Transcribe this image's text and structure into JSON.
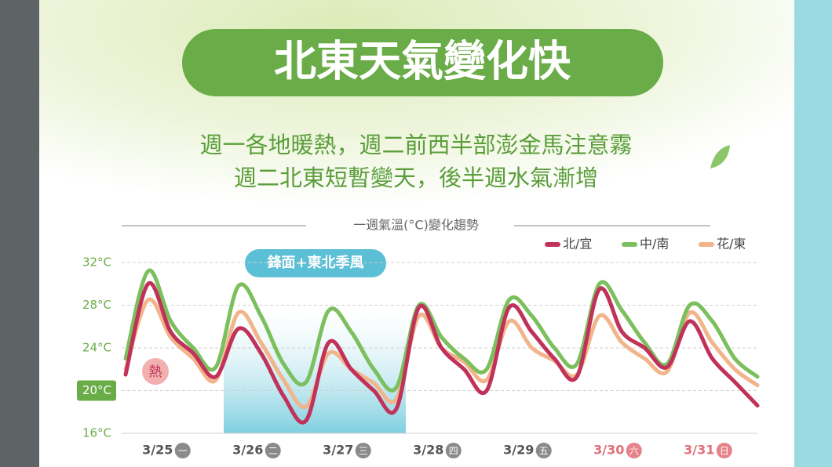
{
  "header": {
    "title": "北東天氣變化快",
    "subtitle_lines": [
      "週一各地暖熱，週二前西半部澎金馬注意霧",
      "週二北東短暫變天，後半週水氣漸增"
    ]
  },
  "chart_data": {
    "type": "line",
    "title": "一週氣溫(°C)變化趨勢",
    "categories": [
      null,
      "3/25",
      null,
      null,
      null,
      "3/26",
      null,
      null,
      null,
      "3/27",
      null,
      null,
      null,
      "3/28",
      null,
      null,
      null,
      "3/29",
      null,
      null,
      null,
      "3/30",
      null,
      null,
      null,
      "3/31",
      null,
      null,
      null
    ],
    "weekdays": [
      "一",
      "二",
      "三",
      "四",
      "五",
      "六",
      "日"
    ],
    "weekday_colors": [
      "#8a8a8a",
      "#8a8a8a",
      "#8a8a8a",
      "#8a8a8a",
      "#8a8a8a",
      "#e5828a",
      "#e5828a"
    ],
    "label_colors": [
      "#555555",
      "#555555",
      "#555555",
      "#555555",
      "#555555",
      "#e0707a",
      "#e0707a"
    ],
    "series": [
      {
        "name": "北/宜",
        "color": "#c0325a",
        "values": [
          21.5,
          30,
          25.5,
          23.5,
          21.3,
          25.8,
          23.5,
          19.5,
          17.2,
          24.5,
          22,
          20,
          18.3,
          27.8,
          24,
          22,
          20,
          27.8,
          25.5,
          23,
          21.3,
          29.5,
          25.5,
          24,
          22.2,
          26.5,
          23,
          20.8,
          18.6
        ]
      },
      {
        "name": "中/南",
        "color": "#7cbf5d",
        "values": [
          23,
          31.2,
          26.5,
          24,
          22.2,
          29.8,
          27,
          22.5,
          20.8,
          27.5,
          25.5,
          22,
          20.3,
          28,
          25,
          23,
          22,
          28.5,
          27,
          24,
          22.5,
          30,
          27.5,
          24.5,
          22.5,
          28,
          26.5,
          23,
          21.3
        ]
      },
      {
        "name": "花/東",
        "color": "#f2b48a",
        "values": [
          22,
          28.5,
          25,
          23,
          21,
          27.3,
          24.5,
          21,
          18.5,
          23.5,
          22,
          20.7,
          19.2,
          27,
          24,
          22.7,
          21,
          26.5,
          24,
          22.8,
          21.5,
          27,
          24.5,
          23,
          21.8,
          27.3,
          24.5,
          22,
          20.5
        ]
      }
    ],
    "ylim": [
      16,
      32
    ],
    "yticks": [
      {
        "value": 16,
        "label": "16°C"
      },
      {
        "value": 20,
        "label": "20°C"
      },
      {
        "value": 24,
        "label": "24°C"
      },
      {
        "value": 28,
        "label": "28°C"
      },
      {
        "value": 32,
        "label": "32°C"
      }
    ],
    "highlight_ytick": 20,
    "grid": true,
    "legend": "top-right",
    "annotations": [
      "鋒面+東北季風",
      "熱"
    ]
  }
}
